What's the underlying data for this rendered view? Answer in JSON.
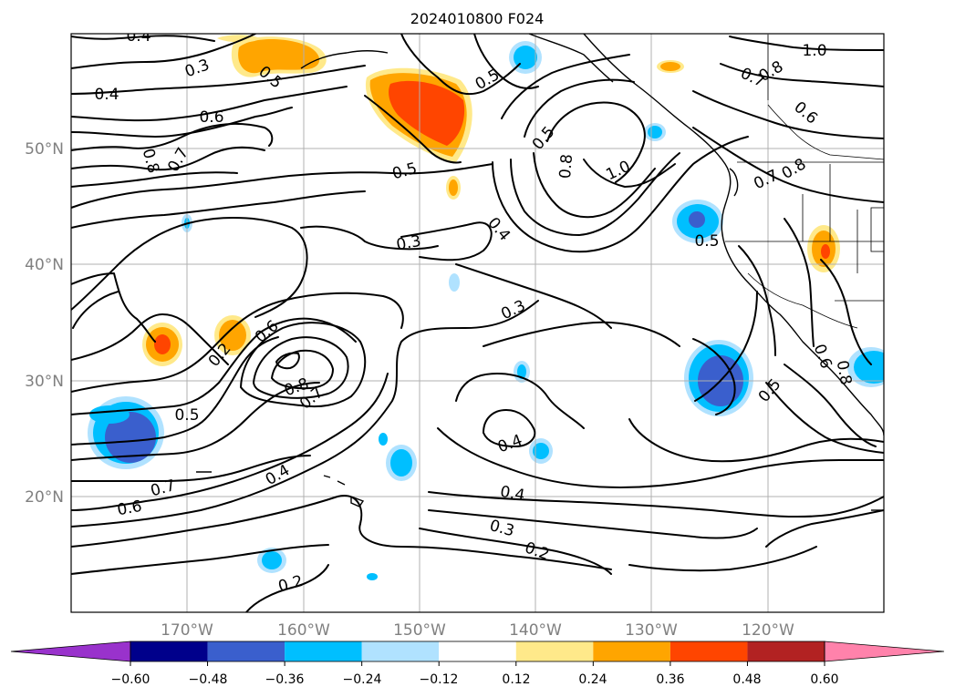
{
  "title": "2024010800 F024",
  "axes": {
    "lon_ticks": [
      "170°W",
      "160°W",
      "150°W",
      "140°W",
      "130°W",
      "120°W"
    ],
    "lat_ticks": [
      "50°N",
      "40°N",
      "30°N",
      "20°N"
    ],
    "lon_values": [
      -170,
      -160,
      -150,
      -140,
      -130,
      -120
    ],
    "lat_values": [
      50,
      40,
      30,
      20
    ],
    "grid": true
  },
  "colorbar": {
    "tick_labels": [
      "−0.60",
      "−0.48",
      "−0.36",
      "−0.24",
      "−0.12",
      "0.12",
      "0.24",
      "0.36",
      "0.48",
      "0.60"
    ],
    "tick_values": [
      -0.6,
      -0.48,
      -0.36,
      -0.24,
      -0.12,
      0.12,
      0.24,
      0.36,
      0.48,
      0.6
    ],
    "colors": [
      "#9932cc",
      "#00008b",
      "#3a5fcd",
      "#00bfff",
      "#b0e2ff",
      "#ffffff",
      "#ffe98a",
      "#ffa500",
      "#ff4500",
      "#b22222",
      "#ff82ab"
    ],
    "extend": "both"
  },
  "contour_labels": [
    {
      "text": "0.4"
    },
    {
      "text": "0.3"
    },
    {
      "text": "0.4"
    },
    {
      "text": "0.6"
    },
    {
      "text": "0.8"
    },
    {
      "text": "0.7"
    },
    {
      "text": "0.5"
    },
    {
      "text": "0.5"
    },
    {
      "text": "0.5"
    },
    {
      "text": "0.8"
    },
    {
      "text": "1.0"
    },
    {
      "text": "0.4"
    },
    {
      "text": "0.3"
    },
    {
      "text": "1.0"
    },
    {
      "text": "0.7"
    },
    {
      "text": "0.8"
    },
    {
      "text": "0.6"
    },
    {
      "text": "0.8"
    },
    {
      "text": "0.7"
    },
    {
      "text": "0.5"
    },
    {
      "text": "0.3"
    },
    {
      "text": "0.6"
    },
    {
      "text": "0.8"
    },
    {
      "text": "0.7"
    },
    {
      "text": "0.5"
    },
    {
      "text": "0.4"
    },
    {
      "text": "0.4"
    },
    {
      "text": "0.4"
    },
    {
      "text": "0.3"
    },
    {
      "text": "0.2"
    },
    {
      "text": "0.7"
    },
    {
      "text": "0.6"
    },
    {
      "text": "0.2"
    },
    {
      "text": "0.5"
    },
    {
      "text": "0.8"
    },
    {
      "text": "0.6"
    },
    {
      "text": "0.5"
    },
    {
      "text": "0.2"
    }
  ]
}
